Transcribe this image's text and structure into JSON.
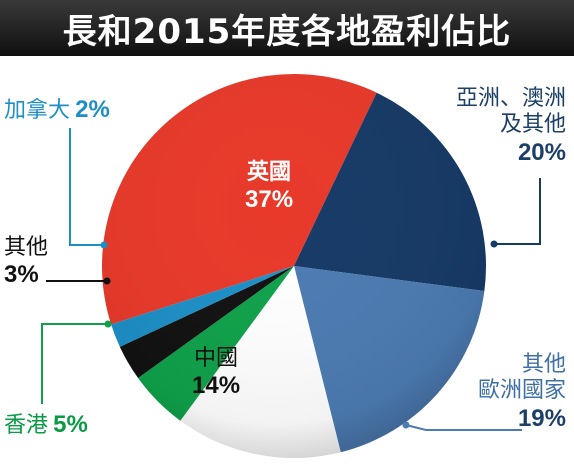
{
  "title": "長和2015年度各地盈利佔比",
  "chart_data": {
    "type": "pie",
    "title": "長和2015年度各地盈利佔比",
    "slices": [
      {
        "label": "英國",
        "value": 37,
        "value_text": "37%",
        "color": "#e8392a"
      },
      {
        "label": "亞洲、澳洲及其他",
        "value": 20,
        "value_text": "20%",
        "color": "#163a66"
      },
      {
        "label": "其他歐洲國家",
        "value": 19,
        "value_text": "19%",
        "color": "#4c7bb2"
      },
      {
        "label": "中國",
        "value": 14,
        "value_text": "14%",
        "color": "#ffffff"
      },
      {
        "label": "香港",
        "value": 5,
        "value_text": "5%",
        "color": "#0fa14a"
      },
      {
        "label": "其他",
        "value": 3,
        "value_text": "3%",
        "color": "#111111"
      },
      {
        "label": "加拿大",
        "value": 2,
        "value_text": "2%",
        "color": "#1c8fc6"
      }
    ],
    "legend": "none"
  },
  "labels": {
    "uk": {
      "name": "英國",
      "pct": "37%"
    },
    "asia": {
      "line1": "亞洲、澳洲",
      "line2": "及其他",
      "pct": "20%"
    },
    "europe": {
      "line1": "其他",
      "line2": "歐洲國家",
      "pct": "19%"
    },
    "china": {
      "name": "中國",
      "pct": "14%"
    },
    "hk": {
      "name": "香港",
      "pct": "5%"
    },
    "other": {
      "name": "其他",
      "pct": "3%"
    },
    "canada": {
      "name": "加拿大",
      "pct": "2%"
    }
  }
}
